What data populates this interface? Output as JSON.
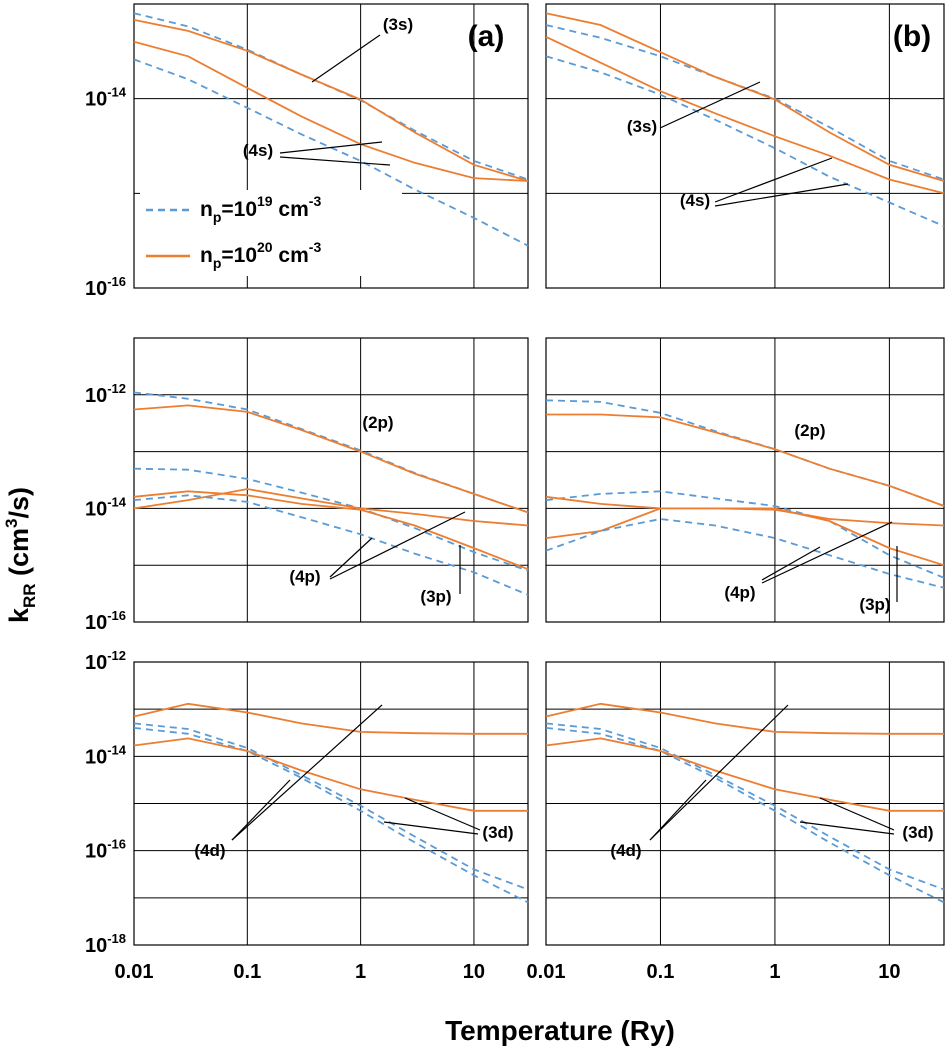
{
  "figure": {
    "xlabel": "Temperature (Ry)",
    "ylabel": "k_RR (cm³/s)",
    "x_ticks": [
      "0.01",
      "0.1",
      "1",
      "10"
    ],
    "panel_tags": [
      "(a)",
      "(b)"
    ],
    "legend": {
      "dashed": {
        "prefix": "n",
        "sub": "p",
        "mid": "=10",
        "exp": "19",
        "unit": " cm",
        "unit_exp": "-3"
      },
      "solid": {
        "prefix": "n",
        "sub": "p",
        "mid": "=10",
        "exp": "20",
        "unit": " cm",
        "unit_exp": "-3"
      }
    },
    "colors": {
      "dashed": "#5b9bd5",
      "solid": "#ed7d31",
      "grid": "#000000"
    },
    "line_styles": {
      "dashed": "dashed",
      "solid": "solid"
    }
  },
  "chart_data": [
    {
      "type": "line",
      "panel": "top-left",
      "tag": "(a)",
      "xscale": "log",
      "yscale": "log",
      "xlim": [
        0.01,
        30
      ],
      "ylim": [
        1e-16,
        1e-13
      ],
      "ytick_labels": [
        {
          "value": 1e-14,
          "base": "10",
          "exp": "-14"
        },
        {
          "value": 1e-16,
          "base": "10",
          "exp": "-16"
        }
      ],
      "x": [
        0.01,
        0.03,
        0.1,
        0.3,
        1,
        3,
        10,
        30
      ],
      "series": [
        {
          "label": "(3s)",
          "density": "1e19",
          "style": "dashed",
          "values": [
            8e-14,
            5.8e-14,
            3.3e-14,
            1.8e-14,
            9.6e-15,
            4.6e-15,
            2.2e-15,
            1.4e-15
          ]
        },
        {
          "label": "(3s)",
          "density": "1e20",
          "style": "solid",
          "values": [
            6.8e-14,
            5.2e-14,
            3.2e-14,
            1.8e-14,
            9.8e-15,
            4.4e-15,
            2e-15,
            1.35e-15
          ]
        },
        {
          "label": "(4s)",
          "density": "1e19",
          "style": "dashed",
          "values": [
            2.6e-14,
            1.6e-14,
            8e-15,
            4.2e-15,
            2.2e-15,
            1.1e-15,
            5.5e-16,
            2.8e-16
          ]
        },
        {
          "label": "(4s)",
          "density": "1e20",
          "style": "solid",
          "values": [
            4e-14,
            2.8e-14,
            1.3e-14,
            6.5e-15,
            3.3e-15,
            2.1e-15,
            1.45e-15,
            1.35e-15
          ]
        }
      ],
      "annotations": [
        "(3s)",
        "(4s)"
      ]
    },
    {
      "type": "line",
      "panel": "top-right",
      "tag": "(b)",
      "xscale": "log",
      "yscale": "log",
      "xlim": [
        0.01,
        30
      ],
      "ylim": [
        1e-16,
        1e-13
      ],
      "ytick_labels": [],
      "x": [
        0.01,
        0.03,
        0.1,
        0.3,
        1,
        3,
        10,
        30
      ],
      "series": [
        {
          "label": "(3s)",
          "density": "1e19",
          "style": "dashed",
          "values": [
            6e-14,
            4.4e-14,
            2.8e-14,
            1.7e-14,
            1e-14,
            5e-15,
            2.2e-15,
            1.4e-15
          ]
        },
        {
          "label": "(3s)",
          "density": "1e20",
          "style": "solid",
          "values": [
            8e-14,
            6e-14,
            3.1e-14,
            1.7e-14,
            9.8e-15,
            4.4e-15,
            2e-15,
            1.35e-15
          ]
        },
        {
          "label": "(4s)",
          "density": "1e19",
          "style": "dashed",
          "values": [
            2.8e-14,
            1.9e-14,
            1.1e-14,
            6e-15,
            3e-15,
            1.5e-15,
            8e-16,
            4.5e-16
          ]
        },
        {
          "label": "(4s)",
          "density": "1e20",
          "style": "solid",
          "values": [
            4.5e-14,
            2.4e-14,
            1.2e-14,
            7e-15,
            4e-15,
            2.5e-15,
            1.4e-15,
            1e-15
          ]
        }
      ],
      "annotations": [
        "(3s)",
        "(4s)"
      ]
    },
    {
      "type": "line",
      "panel": "middle-left",
      "xscale": "log",
      "yscale": "log",
      "xlim": [
        0.01,
        30
      ],
      "ylim": [
        1e-16,
        1e-11
      ],
      "ytick_labels": [
        {
          "value": 1e-12,
          "base": "10",
          "exp": "-12"
        },
        {
          "value": 1e-14,
          "base": "10",
          "exp": "-14"
        },
        {
          "value": 1e-16,
          "base": "10",
          "exp": "-16"
        }
      ],
      "x": [
        0.01,
        0.03,
        0.1,
        0.3,
        1,
        3,
        10,
        30
      ],
      "series": [
        {
          "label": "(2p)",
          "density": "1e19",
          "style": "dashed",
          "values": [
            1.1e-12,
            8.5e-13,
            5.5e-13,
            2.5e-13,
            1.05e-13,
            4.2e-14,
            1.8e-14,
            8.5e-15
          ]
        },
        {
          "label": "(2p)",
          "density": "1e20",
          "style": "solid",
          "values": [
            5.5e-13,
            6.5e-13,
            5e-13,
            2.4e-13,
            1e-13,
            4.1e-14,
            1.8e-14,
            8.5e-15
          ]
        },
        {
          "label": "(4p)",
          "density": "1e19",
          "style": "dashed",
          "values": [
            5e-14,
            4.8e-14,
            3.3e-14,
            1.9e-14,
            1e-14,
            4.5e-15,
            1.7e-15,
            8e-16
          ]
        },
        {
          "label": "(4p)",
          "density": "1e20",
          "style": "solid",
          "values": [
            1e-14,
            1.4e-14,
            2.2e-14,
            1.5e-14,
            1e-14,
            8e-15,
            6e-15,
            5e-15
          ]
        },
        {
          "label": "(3p)",
          "density": "1e19",
          "style": "dashed",
          "values": [
            1.4e-14,
            1.7e-14,
            1.3e-14,
            7e-15,
            3.5e-15,
            1.6e-15,
            7.5e-16,
            3e-16
          ]
        },
        {
          "label": "(3p)",
          "density": "1e20",
          "style": "solid",
          "values": [
            1.6e-14,
            2e-14,
            1.7e-14,
            1.2e-14,
            9.5e-15,
            5e-15,
            2e-15,
            8.5e-16
          ]
        }
      ],
      "annotations": [
        "(2p)",
        "(4p)",
        "(3p)"
      ]
    },
    {
      "type": "line",
      "panel": "middle-right",
      "xscale": "log",
      "yscale": "log",
      "xlim": [
        0.01,
        30
      ],
      "ylim": [
        1e-16,
        1e-11
      ],
      "ytick_labels": [],
      "x": [
        0.01,
        0.03,
        0.1,
        0.3,
        1,
        3,
        10,
        30
      ],
      "series": [
        {
          "label": "(2p)",
          "density": "1e19",
          "style": "dashed",
          "values": [
            8e-13,
            7.5e-13,
            4.8e-13,
            2.3e-13,
            1.1e-13,
            5e-14,
            2.5e-14,
            1.1e-14
          ]
        },
        {
          "label": "(2p)",
          "density": "1e20",
          "style": "solid",
          "values": [
            4.5e-13,
            4.5e-13,
            4e-13,
            2.2e-13,
            1.1e-13,
            5e-14,
            2.5e-14,
            1.1e-14
          ]
        },
        {
          "label": "(4p)",
          "density": "1e19",
          "style": "dashed",
          "values": [
            1.4e-14,
            1.8e-14,
            2e-14,
            1.5e-14,
            1.1e-14,
            6e-15,
            1.5e-15,
            6e-16
          ]
        },
        {
          "label": "(4p)",
          "density": "1e20",
          "style": "solid",
          "values": [
            3e-15,
            4e-15,
            1e-14,
            1e-14,
            1e-14,
            6e-15,
            2e-15,
            1e-15
          ]
        },
        {
          "label": "(3p)",
          "density": "1e19",
          "style": "dashed",
          "values": [
            1.8e-15,
            4e-15,
            6.5e-15,
            5e-15,
            3e-15,
            1.5e-15,
            7e-16,
            4e-16
          ]
        },
        {
          "label": "(3p)",
          "density": "1e20",
          "style": "solid",
          "values": [
            1.6e-14,
            1.2e-14,
            1e-14,
            1e-14,
            9.5e-15,
            6.5e-15,
            5.5e-15,
            5e-15
          ]
        }
      ],
      "annotations": [
        "(2p)",
        "(4p)",
        "(3p)"
      ]
    },
    {
      "type": "line",
      "panel": "bottom-left",
      "xscale": "log",
      "yscale": "log",
      "xlim": [
        0.01,
        30
      ],
      "ylim": [
        1e-18,
        1e-12
      ],
      "ytick_labels": [
        {
          "value": 1e-12,
          "base": "10",
          "exp": "-12"
        },
        {
          "value": 1e-14,
          "base": "10",
          "exp": "-14"
        },
        {
          "value": 1e-16,
          "base": "10",
          "exp": "-16"
        },
        {
          "value": 1e-18,
          "base": "10",
          "exp": "-18"
        }
      ],
      "x": [
        0.01,
        0.03,
        0.1,
        0.3,
        1,
        3,
        10,
        30
      ],
      "series": [
        {
          "label": "(4d)",
          "density": "1e19",
          "style": "dashed",
          "values": [
            5e-14,
            3.8e-14,
            1.5e-14,
            4e-15,
            9e-16,
            2e-16,
            4e-17,
            1.5e-17
          ]
        },
        {
          "label": "(4d)",
          "density": "1e20",
          "style": "solid",
          "values": [
            7e-14,
            1.3e-13,
            8.5e-14,
            5e-14,
            3.3e-14,
            3.1e-14,
            3e-14,
            3e-14
          ]
        },
        {
          "label": "(3d)",
          "density": "1e19",
          "style": "dashed",
          "values": [
            4e-14,
            3e-14,
            1.3e-14,
            3.5e-15,
            7e-16,
            1.5e-16,
            3e-17,
            8e-18
          ]
        },
        {
          "label": "(3d)",
          "density": "1e20",
          "style": "solid",
          "values": [
            1.7e-14,
            2.4e-14,
            1.3e-14,
            5e-15,
            2e-15,
            1.2e-15,
            7e-16,
            7e-16
          ]
        }
      ],
      "annotations": [
        "(4d)",
        "(3d)"
      ]
    },
    {
      "type": "line",
      "panel": "bottom-right",
      "xscale": "log",
      "yscale": "log",
      "xlim": [
        0.01,
        30
      ],
      "ylim": [
        1e-18,
        1e-12
      ],
      "ytick_labels": [],
      "x": [
        0.01,
        0.03,
        0.1,
        0.3,
        1,
        3,
        10,
        30
      ],
      "series": [
        {
          "label": "(4d)",
          "density": "1e19",
          "style": "dashed",
          "values": [
            5e-14,
            3.8e-14,
            1.5e-14,
            4e-15,
            9e-16,
            2e-16,
            4e-17,
            1.5e-17
          ]
        },
        {
          "label": "(4d)",
          "density": "1e20",
          "style": "solid",
          "values": [
            7e-14,
            1.3e-13,
            8.5e-14,
            5e-14,
            3.3e-14,
            3.1e-14,
            3e-14,
            3e-14
          ]
        },
        {
          "label": "(3d)",
          "density": "1e19",
          "style": "dashed",
          "values": [
            4e-14,
            3e-14,
            1.3e-14,
            3.5e-15,
            7e-16,
            1.5e-16,
            3e-17,
            8e-18
          ]
        },
        {
          "label": "(3d)",
          "density": "1e20",
          "style": "solid",
          "values": [
            1.7e-14,
            2.4e-14,
            1.3e-14,
            5e-15,
            2e-15,
            1.2e-15,
            7e-16,
            7e-16
          ]
        }
      ],
      "annotations": [
        "(4d)",
        "(3d)"
      ]
    }
  ]
}
